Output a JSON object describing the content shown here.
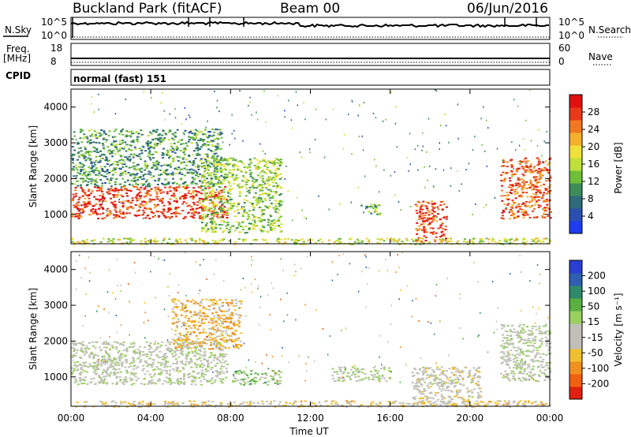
{
  "header": {
    "station": "Buckland Park (fitACF)",
    "beam": "Beam 00",
    "date": "06/Jun/2016"
  },
  "side_labels": {
    "nsky": "N.Sky",
    "freq_line1": "Freq.",
    "freq_line2": "[MHz]",
    "cpid": "CPID",
    "nsearch": "N.Search",
    "nave": "Nave",
    "nsky_top": "10^5",
    "nsky_bottom": "10^0",
    "nsearch_top": "10^5",
    "nsearch_bottom": "10^0",
    "freq_top": "18",
    "freq_bottom": "8",
    "nave_top": "60",
    "nave_bottom": "0"
  },
  "cpid_text": "normal (fast) 151",
  "axes": {
    "ylabel": "Slant Range [km]",
    "xlabel": "Time UT",
    "yticks": [
      "1000",
      "2000",
      "3000",
      "4000"
    ],
    "xticks": [
      "00:00",
      "04:00",
      "08:00",
      "12:00",
      "16:00",
      "20:00",
      "00:00"
    ]
  },
  "colorbars": {
    "power": {
      "label": "Power [dB]",
      "ticks": [
        "4",
        "8",
        "12",
        "16",
        "20",
        "24",
        "28"
      ],
      "colors": [
        "#1f3cf0",
        "#2a4fb0",
        "#2f6a7a",
        "#3d8c5a",
        "#6fbf3a",
        "#bfe03a",
        "#f0e03a",
        "#f5b030",
        "#f07820",
        "#e83a1a",
        "#e01010"
      ]
    },
    "velocity": {
      "label": "Velocity [m s⁻¹]",
      "ticks": [
        "200",
        "100",
        "50",
        "15",
        "-15",
        "-50",
        "-100",
        "-200"
      ],
      "colors": [
        "#2a3fd0",
        "#2f5fb0",
        "#2f8a6a",
        "#5ab040",
        "#9ad060",
        "#c0c0b8",
        "#c0c0b8",
        "#f0c030",
        "#f09020",
        "#f06010",
        "#e02010"
      ]
    }
  },
  "chart_data": [
    {
      "type": "heatmap",
      "name": "power",
      "x_range": [
        "00:00",
        "24:00"
      ],
      "y_range_km": [
        180,
        4500
      ],
      "colorbar_range_db": [
        0,
        30
      ],
      "features": [
        {
          "t_start": 0.0,
          "t_end": 7.8,
          "range_km": [
            900,
            1800
          ],
          "level_db": 26
        },
        {
          "t_start": 0.0,
          "t_end": 7.5,
          "range_km": [
            1800,
            3400
          ],
          "level_db": 10
        },
        {
          "t_start": 6.5,
          "t_end": 10.5,
          "range_km": [
            500,
            2600
          ],
          "level_db": 14
        },
        {
          "t_start": 14.5,
          "t_end": 15.5,
          "range_km": [
            1000,
            1300
          ],
          "level_db": 12
        },
        {
          "t_start": 17.2,
          "t_end": 18.8,
          "range_km": [
            250,
            1400
          ],
          "level_db": 26
        },
        {
          "t_start": 21.5,
          "t_end": 24.0,
          "range_km": [
            900,
            2600
          ],
          "level_db": 24
        },
        {
          "t_start": 0.0,
          "t_end": 24.0,
          "range_km": [
            180,
            350
          ],
          "level_db": 16
        }
      ]
    },
    {
      "type": "heatmap",
      "name": "velocity",
      "x_range": [
        "00:00",
        "24:00"
      ],
      "y_range_km": [
        180,
        4500
      ],
      "colorbar_range_ms": [
        -250,
        250
      ],
      "features": [
        {
          "t_start": 0.0,
          "t_end": 7.8,
          "range_km": [
            800,
            2000
          ],
          "velocity_ms": 0
        },
        {
          "t_start": 5.0,
          "t_end": 8.5,
          "range_km": [
            1800,
            3200
          ],
          "velocity_ms": -100
        },
        {
          "t_start": 8.0,
          "t_end": 10.5,
          "range_km": [
            800,
            1200
          ],
          "velocity_ms": 60
        },
        {
          "t_start": 13.0,
          "t_end": 16.0,
          "range_km": [
            900,
            1300
          ],
          "velocity_ms": 0
        },
        {
          "t_start": 17.0,
          "t_end": 20.5,
          "range_km": [
            250,
            1300
          ],
          "velocity_ms": -30
        },
        {
          "t_start": 21.5,
          "t_end": 24.0,
          "range_km": [
            900,
            2500
          ],
          "velocity_ms": 0
        },
        {
          "t_start": 0.0,
          "t_end": 24.0,
          "range_km": [
            180,
            350
          ],
          "velocity_ms": -60
        }
      ]
    }
  ]
}
